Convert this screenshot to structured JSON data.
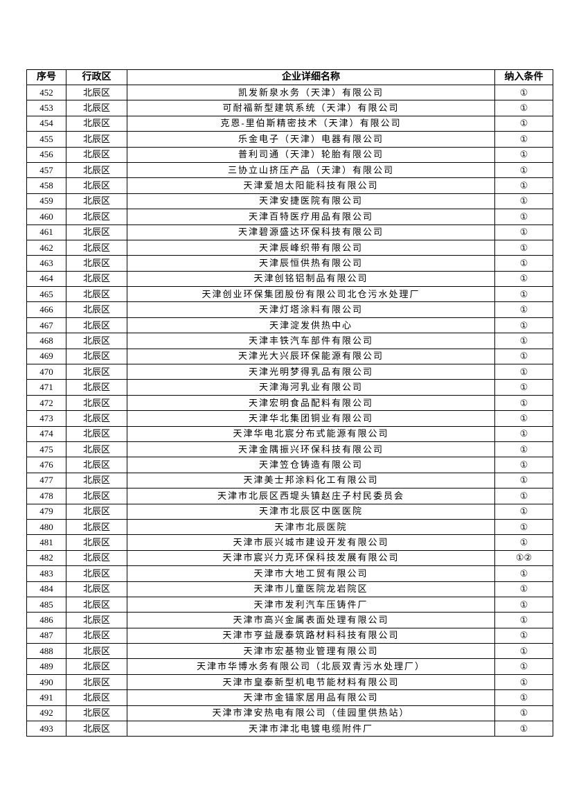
{
  "table": {
    "headers": [
      "序号",
      "行政区",
      "企业详细名称",
      "纳入条件"
    ],
    "rows": [
      [
        "452",
        "北辰区",
        "凯发新泉水务（天津）有限公司",
        "①"
      ],
      [
        "453",
        "北辰区",
        "可耐福新型建筑系统（天津）有限公司",
        "①"
      ],
      [
        "454",
        "北辰区",
        "克恩-里伯斯精密技术（天津）有限公司",
        "①"
      ],
      [
        "455",
        "北辰区",
        "乐金电子（天津）电器有限公司",
        "①"
      ],
      [
        "456",
        "北辰区",
        "普利司通（天津）轮胎有限公司",
        "①"
      ],
      [
        "457",
        "北辰区",
        "三协立山挤压产品（天津）有限公司",
        "①"
      ],
      [
        "458",
        "北辰区",
        "天津爱旭太阳能科技有限公司",
        "①"
      ],
      [
        "459",
        "北辰区",
        "天津安捷医院有限公司",
        "①"
      ],
      [
        "460",
        "北辰区",
        "天津百特医疗用品有限公司",
        "①"
      ],
      [
        "461",
        "北辰区",
        "天津碧源盛达环保科技有限公司",
        "①"
      ],
      [
        "462",
        "北辰区",
        "天津辰峰织带有限公司",
        "①"
      ],
      [
        "463",
        "北辰区",
        "天津辰恒供热有限公司",
        "①"
      ],
      [
        "464",
        "北辰区",
        "天津创铭铝制品有限公司",
        "①"
      ],
      [
        "465",
        "北辰区",
        "天津创业环保集团股份有限公司北仓污水处理厂",
        "①"
      ],
      [
        "466",
        "北辰区",
        "天津灯塔涂料有限公司",
        "①"
      ],
      [
        "467",
        "北辰区",
        "天津淀发供热中心",
        "①"
      ],
      [
        "468",
        "北辰区",
        "天津丰铁汽车部件有限公司",
        "①"
      ],
      [
        "469",
        "北辰区",
        "天津光大兴辰环保能源有限公司",
        "①"
      ],
      [
        "470",
        "北辰区",
        "天津光明梦得乳品有限公司",
        "①"
      ],
      [
        "471",
        "北辰区",
        "天津海河乳业有限公司",
        "①"
      ],
      [
        "472",
        "北辰区",
        "天津宏明食品配料有限公司",
        "①"
      ],
      [
        "473",
        "北辰区",
        "天津华北集团铜业有限公司",
        "①"
      ],
      [
        "474",
        "北辰区",
        "天津华电北宸分布式能源有限公司",
        "①"
      ],
      [
        "475",
        "北辰区",
        "天津金隅振兴环保科技有限公司",
        "①"
      ],
      [
        "476",
        "北辰区",
        "天津笠仓铸造有限公司",
        "①"
      ],
      [
        "477",
        "北辰区",
        "天津美士邦涂料化工有限公司",
        "①"
      ],
      [
        "478",
        "北辰区",
        "天津市北辰区西堤头镇赵庄子村民委员会",
        "①"
      ],
      [
        "479",
        "北辰区",
        "天津市北辰区中医医院",
        "①"
      ],
      [
        "480",
        "北辰区",
        "天津市北辰医院",
        "①"
      ],
      [
        "481",
        "北辰区",
        "天津市辰兴城市建设开发有限公司",
        "①"
      ],
      [
        "482",
        "北辰区",
        "天津市宸兴力克环保科技发展有限公司",
        "①②"
      ],
      [
        "483",
        "北辰区",
        "天津市大地工贸有限公司",
        "①"
      ],
      [
        "484",
        "北辰区",
        "天津市儿童医院龙岩院区",
        "①"
      ],
      [
        "485",
        "北辰区",
        "天津市发利汽车压铸件厂",
        "①"
      ],
      [
        "486",
        "北辰区",
        "天津市高兴金属表面处理有限公司",
        "①"
      ],
      [
        "487",
        "北辰区",
        "天津市亨益晟泰筑路材料科技有限公司",
        "①"
      ],
      [
        "488",
        "北辰区",
        "天津市宏基物业管理有限公司",
        "①"
      ],
      [
        "489",
        "北辰区",
        "天津市华博水务有限公司（北辰双青污水处理厂）",
        "①"
      ],
      [
        "490",
        "北辰区",
        "天津市皇泰新型机电节能材料有限公司",
        "①"
      ],
      [
        "491",
        "北辰区",
        "天津市金锚家居用品有限公司",
        "①"
      ],
      [
        "492",
        "北辰区",
        "天津市津安热电有限公司（佳园里供热站）",
        "①"
      ],
      [
        "493",
        "北辰区",
        "天津市津北电镀电缆附件厂",
        "①"
      ]
    ]
  }
}
